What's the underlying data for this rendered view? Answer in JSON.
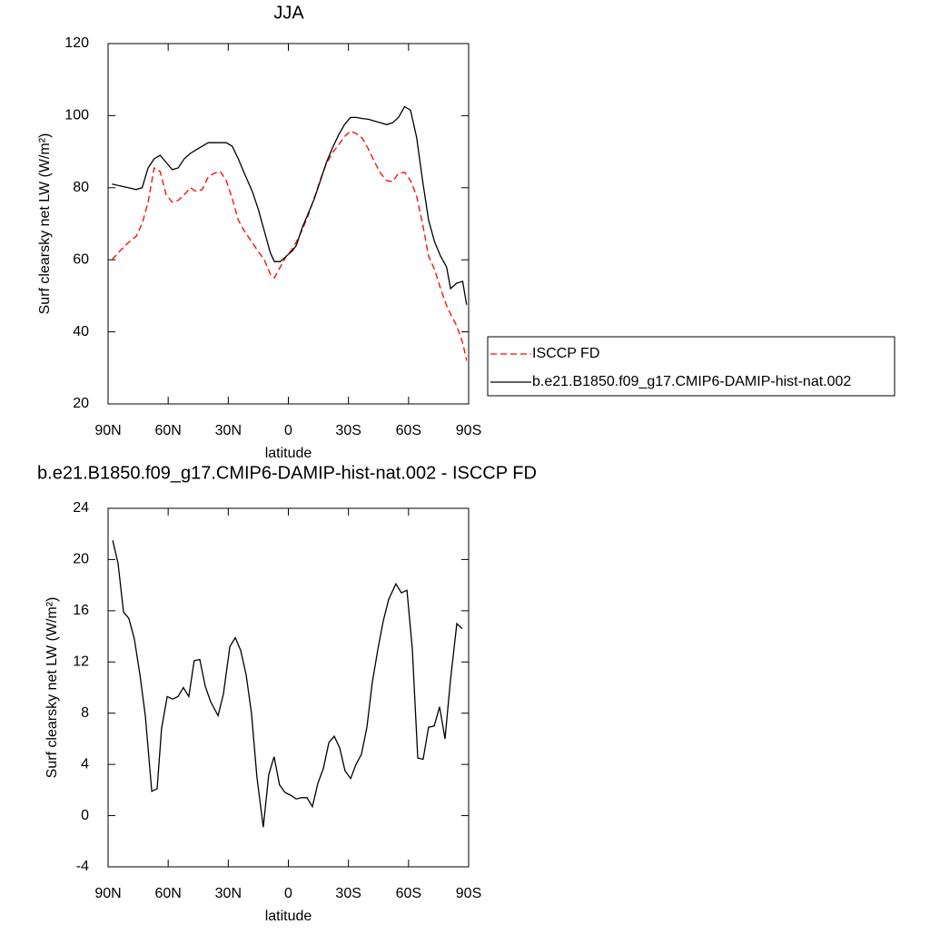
{
  "chart_data": [
    {
      "type": "line",
      "title": "JJA",
      "xlabel": "latitude",
      "ylabel": "Surf clearsky net LW (W/m²)",
      "legend": "right",
      "xlim": [
        90,
        -90
      ],
      "xticks": [
        {
          "value": 90,
          "label": "90N"
        },
        {
          "value": 60,
          "label": "60N"
        },
        {
          "value": 30,
          "label": "30N"
        },
        0,
        {
          "value": -30,
          "label": "30S"
        },
        {
          "value": -60,
          "label": "60S"
        },
        {
          "value": -90,
          "label": "90S"
        }
      ],
      "ylim": [
        20,
        120
      ],
      "yticks": [
        20,
        40,
        60,
        80,
        100,
        120
      ],
      "x": [
        88,
        84,
        80,
        76,
        73,
        70,
        67,
        64,
        61,
        58,
        55,
        52,
        49,
        46,
        43,
        40,
        37,
        34,
        31,
        28,
        25,
        22,
        18,
        15,
        12,
        9,
        7,
        4,
        1,
        -2,
        -4,
        -7,
        -10,
        -13,
        -16,
        -19,
        -22,
        -25,
        -28,
        -31,
        -34,
        -37,
        -40,
        -43,
        -46,
        -49,
        -52,
        -55,
        -58,
        -61,
        -64,
        -67,
        -70,
        -73,
        -76,
        -79,
        -81,
        -84,
        -87,
        -89
      ],
      "series": [
        {
          "name": "ISCCP FD",
          "color": "#ff0000",
          "dash": true,
          "values": [
            60,
            62.5,
            64.7,
            66.5,
            70,
            76,
            85.5,
            84.5,
            78,
            76,
            76.5,
            78,
            80,
            79,
            79.5,
            83,
            84,
            84.5,
            82,
            77,
            71,
            68,
            64.7,
            62.3,
            60,
            56,
            55,
            58,
            61,
            63,
            65,
            68.3,
            72.5,
            77.3,
            82.3,
            86.7,
            89.7,
            91.8,
            94.2,
            95.7,
            95,
            93.7,
            90.7,
            87.2,
            84,
            82,
            81.7,
            84,
            84.3,
            82,
            77.7,
            70,
            61,
            57.3,
            52,
            47.3,
            45,
            41.7,
            37,
            32
          ]
        },
        {
          "name": "b.e21.B1850.f09_g17.CMIP6-DAMIP-hist-nat.002",
          "color": "#000000",
          "dash": false,
          "values": [
            81,
            80.5,
            80,
            79.5,
            80,
            85.5,
            88,
            89,
            87,
            85,
            85.5,
            88,
            89.5,
            90.5,
            91.5,
            92.5,
            92.5,
            92.5,
            92.5,
            91.5,
            88,
            84,
            79,
            74,
            68,
            62,
            59.5,
            59.5,
            61,
            62.5,
            64,
            69,
            73,
            77,
            82,
            87,
            91,
            94.5,
            97.5,
            99.5,
            99.5,
            99.2,
            99,
            98.5,
            98,
            97.5,
            98,
            99.5,
            102.5,
            101.5,
            94,
            82,
            71,
            65,
            61,
            58,
            52,
            53.5,
            54,
            47.5
          ]
        }
      ]
    },
    {
      "type": "line",
      "title": "b.e21.B1850.f09_g17.CMIP6-DAMIP-hist-nat.002 - ISCCP FD",
      "xlabel": "latitude",
      "ylabel": "Surf clearsky net LW (W/m²)",
      "xlim": [
        90,
        -90
      ],
      "xticks": [
        {
          "value": 90,
          "label": "90N"
        },
        {
          "value": 60,
          "label": "60N"
        },
        {
          "value": 30,
          "label": "30N"
        },
        0,
        {
          "value": -30,
          "label": "30S"
        },
        {
          "value": -60,
          "label": "60S"
        },
        {
          "value": -90,
          "label": "90S"
        }
      ],
      "ylim": [
        -4,
        24
      ],
      "yticks": [
        -4,
        0,
        4,
        8,
        12,
        16,
        20,
        24
      ],
      "x": [
        87.7,
        85.0,
        82.3,
        79.6,
        76.9,
        74.1,
        71.4,
        68.2,
        65.5,
        63.3,
        60.5,
        57.8,
        55.1,
        52.4,
        49.7,
        47.0,
        44.2,
        41.5,
        38.8,
        35.1,
        32.4,
        29.2,
        26.5,
        23.8,
        21.1,
        18.4,
        15.7,
        12.5,
        9.8,
        7.1,
        4.4,
        1.6,
        -1.1,
        -3.9,
        -6.6,
        -9.3,
        -12.0,
        -14.7,
        -17.5,
        -20.2,
        -22.9,
        -25.6,
        -28.3,
        -31.1,
        -33.8,
        -36.5,
        -39.2,
        -41.9,
        -44.7,
        -47.4,
        -50.1,
        -53.7,
        -56.4,
        -59.2,
        -61.9,
        -64.6,
        -67.3,
        -70.0,
        -72.8,
        -75.5,
        -78.2,
        -80.9,
        -84.1,
        -86.8
      ],
      "series": [
        {
          "color": "#000000",
          "dash": false,
          "values": [
            21.5,
            19.7,
            15.9,
            15.4,
            13.8,
            11.0,
            7.8,
            1.9,
            2.1,
            6.8,
            9.3,
            9.1,
            9.3,
            10.0,
            9.3,
            12.1,
            12.2,
            10.1,
            8.9,
            7.8,
            9.5,
            13.2,
            13.9,
            12.9,
            11.0,
            8.0,
            3.0,
            -0.9,
            3.2,
            4.6,
            2.4,
            1.8,
            1.6,
            1.3,
            1.4,
            1.4,
            0.7,
            2.5,
            3.7,
            5.7,
            6.2,
            5.3,
            3.5,
            2.9,
            4.0,
            4.8,
            6.9,
            10.4,
            13.0,
            15.2,
            16.9,
            18.1,
            17.4,
            17.6,
            13.0,
            4.5,
            4.4,
            6.9,
            7.0,
            8.5,
            6.0,
            10.5,
            15.0,
            14.6
          ]
        }
      ]
    }
  ]
}
